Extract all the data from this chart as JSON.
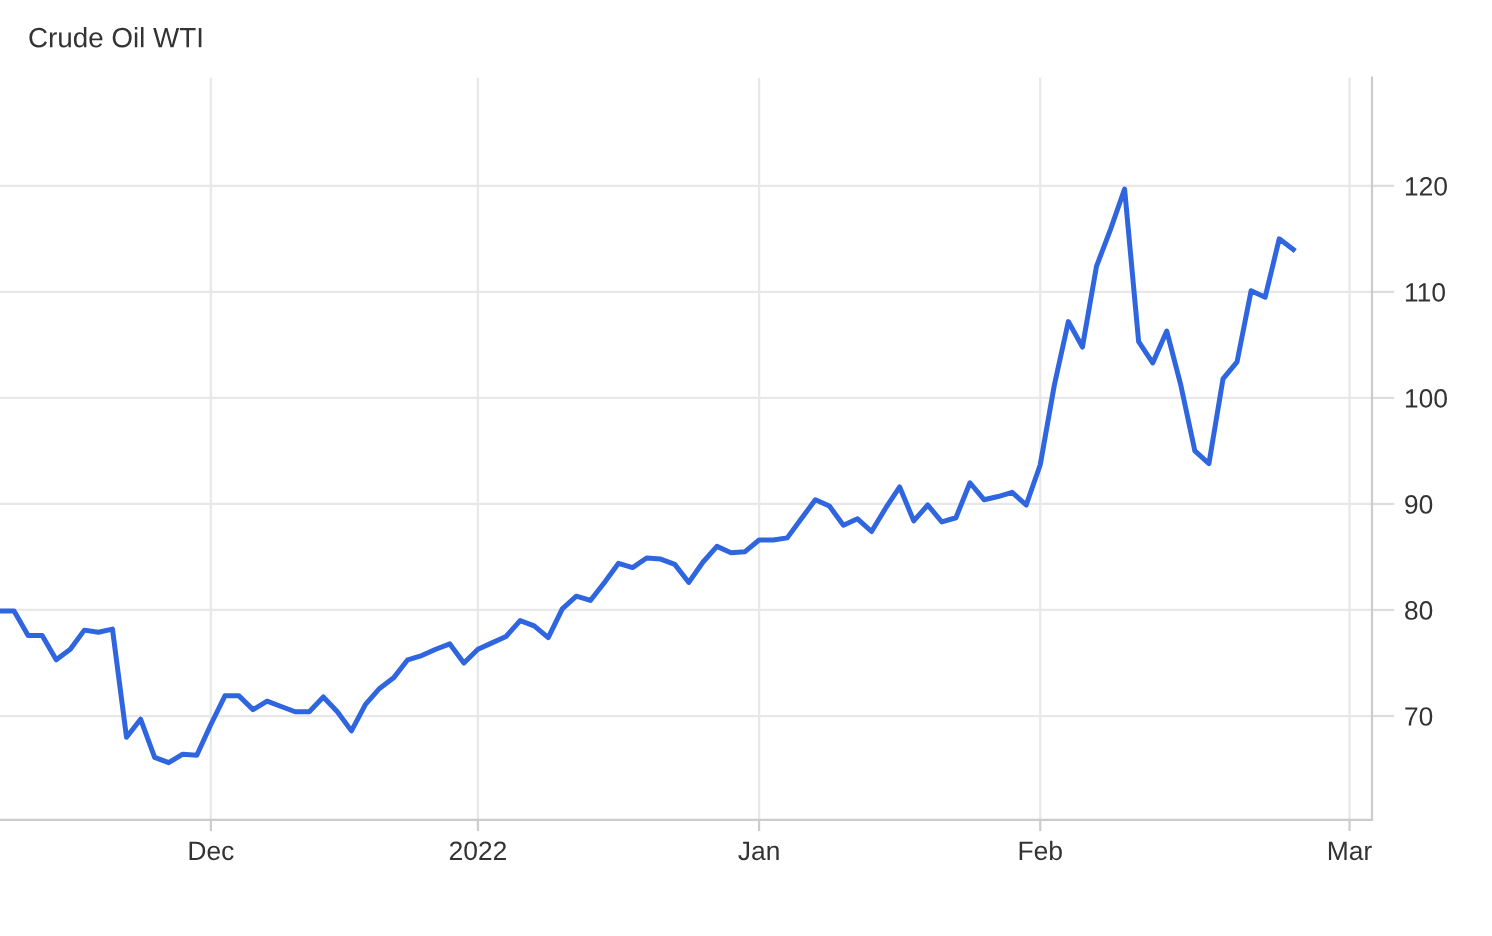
{
  "chart_data": {
    "type": "line",
    "title": "Crude Oil WTI",
    "categories": [
      null,
      null,
      null,
      null,
      null,
      null,
      null,
      null,
      null,
      null,
      null,
      null,
      null,
      null,
      null,
      "Dec",
      null,
      null,
      null,
      null,
      null,
      null,
      null,
      null,
      null,
      null,
      null,
      null,
      null,
      null,
      null,
      null,
      null,
      null,
      "2022",
      null,
      null,
      null,
      null,
      null,
      null,
      null,
      null,
      null,
      null,
      null,
      null,
      null,
      null,
      null,
      null,
      null,
      null,
      null,
      "Jan",
      null,
      null,
      null,
      null,
      null,
      null,
      null,
      null,
      null,
      null,
      null,
      null,
      null,
      null,
      null,
      null,
      null,
      null,
      null,
      "Feb",
      null,
      null,
      null,
      null,
      null,
      null,
      null,
      null,
      null,
      null,
      null,
      null,
      null,
      null,
      null,
      null,
      null,
      null,
      null,
      null,
      null,
      "Mar",
      null
    ],
    "series": [
      {
        "color": "#2f66e0",
        "values": [
          79.9,
          79.9,
          77.6,
          77.6,
          75.3,
          76.3,
          78.1,
          77.9,
          78.2,
          68.0,
          69.7,
          66.1,
          65.6,
          66.4,
          66.3,
          69.2,
          71.9,
          71.9,
          70.6,
          71.4,
          70.9,
          70.4,
          70.4,
          71.8,
          70.4,
          68.6,
          71.1,
          72.6,
          73.6,
          75.3,
          75.7,
          76.3,
          76.8,
          75.0,
          76.3,
          76.9,
          77.5,
          79.0,
          78.5,
          77.4,
          80.1,
          81.3,
          80.9,
          82.6,
          84.4,
          84.0,
          84.9,
          84.8,
          84.3,
          82.6,
          84.5,
          86.0,
          85.4,
          85.5,
          86.6,
          86.6,
          86.8,
          88.6,
          90.4,
          89.8,
          88.0,
          88.6,
          87.4,
          89.6,
          91.6,
          88.4,
          89.9,
          88.3,
          88.7,
          92.0,
          90.4,
          90.7,
          91.1,
          89.9,
          93.7,
          101.2,
          107.2,
          104.8,
          112.4,
          115.9,
          119.7,
          105.3,
          103.3,
          106.3,
          101.2,
          95.0,
          93.8,
          101.8,
          103.4,
          110.1,
          109.5,
          115.0,
          114.0,
          null,
          null,
          null,
          null,
          null
        ]
      }
    ],
    "ylim": [
      60.2,
      130.2
    ],
    "yticks": [
      70,
      80,
      90,
      100,
      110,
      120
    ],
    "grid": true,
    "legend": false,
    "marker": "none",
    "line_style": "solid"
  }
}
